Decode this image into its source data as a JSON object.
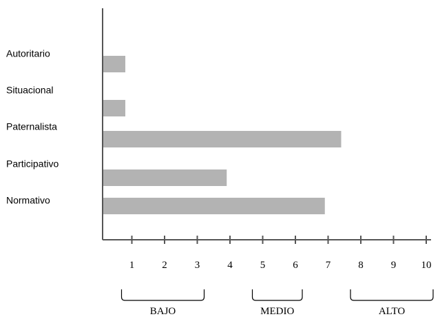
{
  "chart_data": {
    "type": "bar",
    "orientation": "horizontal",
    "categories": [
      "Autoritario",
      "Situacional",
      "Paternalista",
      "Participativo",
      "Normativo"
    ],
    "values": [
      0.8,
      0.8,
      7.4,
      3.9,
      6.9
    ],
    "xlim": [
      0,
      10
    ],
    "x_ticks": [
      1,
      2,
      3,
      4,
      5,
      6,
      7,
      8,
      9,
      10
    ],
    "bar_color": "#b3b3b3",
    "axis_color": "#555555",
    "grid": false,
    "groups": [
      {
        "label": "BAJO",
        "from": 1,
        "to": 3
      },
      {
        "label": "MEDIO",
        "from": 5,
        "to": 6
      },
      {
        "label": "ALTO",
        "from": 8,
        "to": 10
      }
    ]
  }
}
